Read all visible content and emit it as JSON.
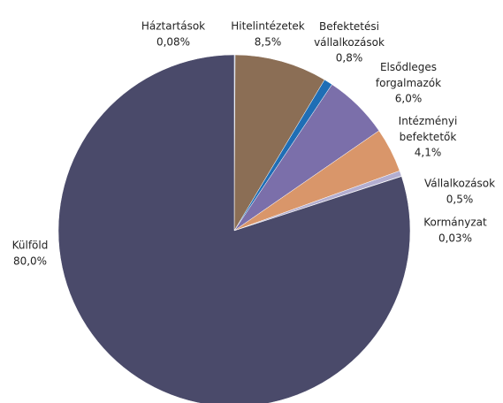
{
  "chart_data": {
    "type": "pie",
    "categories": [
      "Háztartások",
      "Hitelintézetek",
      "Befektetési vállalkozások",
      "Elsődleges forgalmazók",
      "Intézményi befektetők",
      "Vállalkozások",
      "Kormányzat",
      "Külföld"
    ],
    "values": [
      0.08,
      8.5,
      0.8,
      6.0,
      4.1,
      0.5,
      0.03,
      80.0
    ],
    "value_labels": [
      "0,08%",
      "8,5%",
      "0,8%",
      "6,0%",
      "4,1%",
      "0,5%",
      "0,03%",
      "80,0%"
    ],
    "colors": [
      "#5b7fc0",
      "#8b6e55",
      "#1f6eb5",
      "#7b6faa",
      "#d9966a",
      "#b3aed0",
      "#6f8fc8",
      "#4a4a6a"
    ]
  }
}
